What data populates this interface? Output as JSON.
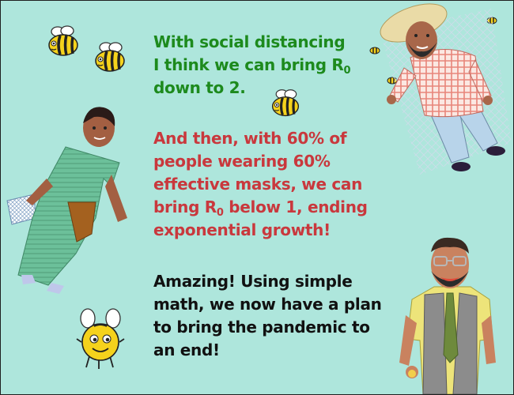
{
  "dialogue": [
    {
      "speaker": "man-with-hat",
      "color": "#1d8a1d",
      "lines": [
        {
          "text": "With social distancing"
        },
        {
          "text": "I think we can bring R",
          "sub": "0"
        },
        {
          "text": "down to 2."
        }
      ]
    },
    {
      "speaker": "woman-in-sari",
      "color": "#c9383d",
      "lines": [
        {
          "text": "And then, with 60% of"
        },
        {
          "text": "people wearing 60%"
        },
        {
          "text": "effective masks, we can"
        },
        {
          "text": "bring R",
          "sub": "0",
          "after": " below 1, ending"
        },
        {
          "text": "exponential growth!"
        }
      ]
    },
    {
      "speaker": "man-with-vest",
      "color": "#111111",
      "lines": [
        {
          "text": "Amazing!  Using simple"
        },
        {
          "text": "math, we now have a plan"
        },
        {
          "text": "to bring the pandemic to"
        },
        {
          "text": "an end!"
        }
      ]
    }
  ],
  "colors": {
    "background": "#aee6dc",
    "bee_yellow": "#f5d21c",
    "sari_green": "#5fb08a",
    "shirt_check": "#e8857a",
    "vest_gray": "#8c8c8c"
  }
}
